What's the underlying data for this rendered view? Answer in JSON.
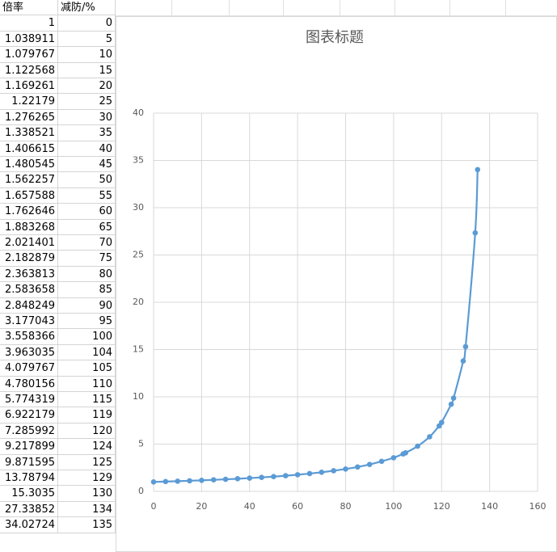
{
  "table": {
    "header": [
      "倍率",
      "减防/%"
    ],
    "rows": [
      [
        1,
        0
      ],
      [
        1.038911,
        5
      ],
      [
        1.079767,
        10
      ],
      [
        1.122568,
        15
      ],
      [
        1.169261,
        20
      ],
      [
        1.22179,
        25
      ],
      [
        1.276265,
        30
      ],
      [
        1.338521,
        35
      ],
      [
        1.406615,
        40
      ],
      [
        1.480545,
        45
      ],
      [
        1.562257,
        50
      ],
      [
        1.657588,
        55
      ],
      [
        1.762646,
        60
      ],
      [
        1.883268,
        65
      ],
      [
        2.021401,
        70
      ],
      [
        2.182879,
        75
      ],
      [
        2.363813,
        80
      ],
      [
        2.583658,
        85
      ],
      [
        2.848249,
        90
      ],
      [
        3.177043,
        95
      ],
      [
        3.558366,
        100
      ],
      [
        3.963035,
        104
      ],
      [
        4.079767,
        105
      ],
      [
        4.780156,
        110
      ],
      [
        5.774319,
        115
      ],
      [
        6.922179,
        119
      ],
      [
        7.285992,
        120
      ],
      [
        9.217899,
        124
      ],
      [
        9.871595,
        125
      ],
      [
        13.78794,
        129
      ],
      [
        15.3035,
        130
      ],
      [
        27.33852,
        134
      ],
      [
        34.02724,
        135
      ]
    ]
  },
  "chart_data": {
    "type": "scatter",
    "title": "图表标题",
    "x": [
      0,
      5,
      10,
      15,
      20,
      25,
      30,
      35,
      40,
      45,
      50,
      55,
      60,
      65,
      70,
      75,
      80,
      85,
      90,
      95,
      100,
      104,
      105,
      110,
      115,
      119,
      120,
      124,
      125,
      129,
      130,
      134,
      135
    ],
    "series": [
      {
        "color": "#5b9bd5",
        "values": [
          1,
          1.038911,
          1.079767,
          1.122568,
          1.169261,
          1.22179,
          1.276265,
          1.338521,
          1.406615,
          1.480545,
          1.562257,
          1.657588,
          1.762646,
          1.883268,
          2.021401,
          2.182879,
          2.363813,
          2.583658,
          2.848249,
          3.177043,
          3.558366,
          3.963035,
          4.079767,
          4.780156,
          5.774319,
          6.922179,
          7.285992,
          9.217899,
          9.871595,
          13.78794,
          15.3035,
          27.33852,
          34.02724
        ]
      }
    ],
    "xlim": [
      0,
      160
    ],
    "xticks": [
      0,
      20,
      40,
      60,
      80,
      100,
      120,
      140,
      160
    ],
    "ylim": [
      0,
      40
    ],
    "yticks": [
      0,
      5,
      10,
      15,
      20,
      25,
      30,
      35,
      40
    ],
    "grid": true
  }
}
